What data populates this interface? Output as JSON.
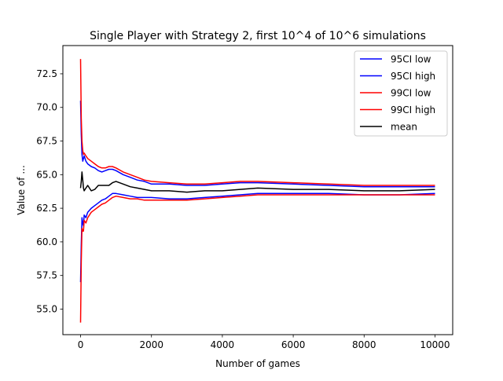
{
  "chart_data": {
    "type": "line",
    "title": "Single Player with Strategy 2, first 10^4 of 10^6 simulations",
    "xlabel": "Number of games",
    "ylabel": "Value of ...",
    "xlim": [
      -500,
      10500
    ],
    "ylim": [
      53.1,
      74.6
    ],
    "xticks": [
      0,
      2000,
      4000,
      6000,
      8000,
      10000
    ],
    "xtick_labels": [
      "0",
      "2000",
      "4000",
      "6000",
      "8000",
      "10000"
    ],
    "yticks": [
      55.0,
      57.5,
      60.0,
      62.5,
      65.0,
      67.5,
      70.0,
      72.5
    ],
    "ytick_labels": [
      "55.0",
      "57.5",
      "60.0",
      "62.5",
      "65.0",
      "67.5",
      "70.0",
      "72.5"
    ],
    "grid": false,
    "legend_position": "top-right",
    "x": [
      0,
      20,
      40,
      60,
      80,
      100,
      150,
      200,
      300,
      400,
      500,
      600,
      700,
      800,
      900,
      1000,
      1200,
      1400,
      1600,
      1800,
      2000,
      2500,
      3000,
      3500,
      4000,
      4500,
      5000,
      6000,
      7000,
      8000,
      9000,
      10000
    ],
    "series": [
      {
        "name": "95CI low",
        "color": "#0000ff",
        "values": [
          57.0,
          59.8,
          61.8,
          61.4,
          61.2,
          62.0,
          61.8,
          62.2,
          62.5,
          62.7,
          62.9,
          63.1,
          63.2,
          63.4,
          63.6,
          63.6,
          63.5,
          63.4,
          63.3,
          63.3,
          63.3,
          63.2,
          63.2,
          63.3,
          63.4,
          63.5,
          63.6,
          63.6,
          63.6,
          63.5,
          63.5,
          63.6
        ]
      },
      {
        "name": "95CI high",
        "color": "#0000ff",
        "values": [
          70.5,
          68.0,
          66.5,
          66.0,
          66.2,
          66.4,
          66.0,
          65.8,
          65.6,
          65.5,
          65.3,
          65.2,
          65.3,
          65.4,
          65.4,
          65.3,
          65.0,
          64.8,
          64.6,
          64.5,
          64.3,
          64.3,
          64.2,
          64.2,
          64.3,
          64.4,
          64.4,
          64.3,
          64.2,
          64.1,
          64.1,
          64.1
        ]
      },
      {
        "name": "99CI low",
        "color": "#ff0000",
        "values": [
          54.0,
          58.5,
          61.0,
          60.8,
          60.8,
          61.6,
          61.4,
          61.8,
          62.2,
          62.4,
          62.6,
          62.8,
          62.9,
          63.1,
          63.3,
          63.4,
          63.3,
          63.2,
          63.2,
          63.1,
          63.1,
          63.1,
          63.1,
          63.2,
          63.3,
          63.4,
          63.5,
          63.5,
          63.5,
          63.5,
          63.5,
          63.5
        ]
      },
      {
        "name": "99CI high",
        "color": "#ff0000",
        "values": [
          73.6,
          69.2,
          67.5,
          66.8,
          66.5,
          66.6,
          66.4,
          66.2,
          66.0,
          65.8,
          65.6,
          65.5,
          65.5,
          65.6,
          65.6,
          65.5,
          65.2,
          65.0,
          64.8,
          64.6,
          64.5,
          64.4,
          64.3,
          64.3,
          64.4,
          64.5,
          64.5,
          64.4,
          64.3,
          64.2,
          64.2,
          64.2
        ]
      },
      {
        "name": "mean",
        "color": "#000000",
        "values": [
          64.0,
          64.5,
          65.2,
          64.6,
          64.0,
          63.8,
          64.0,
          64.2,
          63.8,
          63.9,
          64.2,
          64.2,
          64.2,
          64.2,
          64.4,
          64.5,
          64.3,
          64.1,
          64.0,
          63.9,
          63.8,
          63.8,
          63.7,
          63.8,
          63.8,
          63.9,
          64.0,
          63.9,
          63.9,
          63.8,
          63.8,
          63.9
        ]
      }
    ]
  }
}
